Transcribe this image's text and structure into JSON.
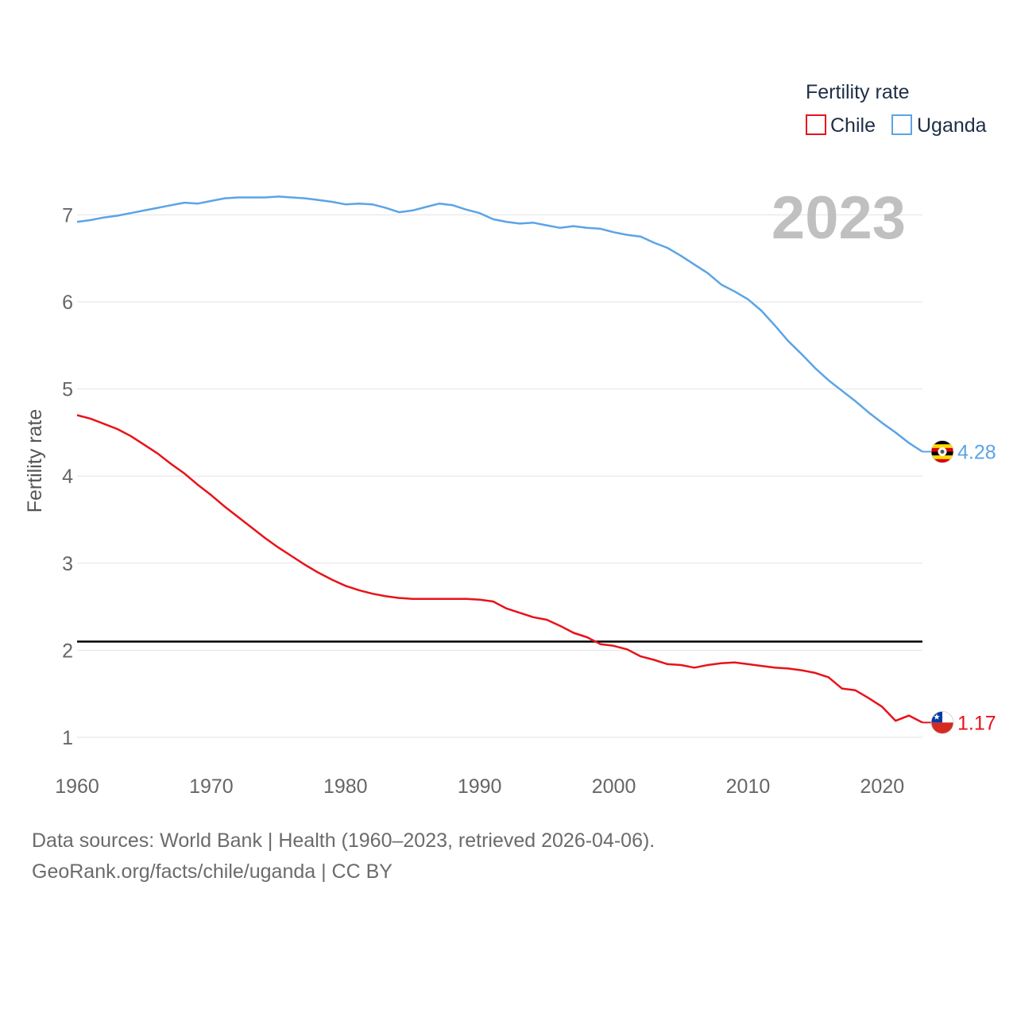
{
  "chart_data": {
    "type": "line",
    "ylabel": "Fertility rate",
    "x_ticks": [
      1960,
      1970,
      1980,
      1990,
      2000,
      2010,
      2020
    ],
    "y_ticks": [
      1,
      2,
      3,
      4,
      5,
      6,
      7
    ],
    "xlim": [
      1960,
      2023
    ],
    "ylim": [
      0.7,
      7.5
    ],
    "year_label": "2023",
    "reference_line": 2.1,
    "legend": {
      "title": "Fertility rate",
      "position": "top-right"
    },
    "x": [
      1960,
      1961,
      1962,
      1963,
      1964,
      1965,
      1966,
      1967,
      1968,
      1969,
      1970,
      1971,
      1972,
      1973,
      1974,
      1975,
      1976,
      1977,
      1978,
      1979,
      1980,
      1981,
      1982,
      1983,
      1984,
      1985,
      1986,
      1987,
      1988,
      1989,
      1990,
      1991,
      1992,
      1993,
      1994,
      1995,
      1996,
      1997,
      1998,
      1999,
      2000,
      2001,
      2002,
      2003,
      2004,
      2005,
      2006,
      2007,
      2008,
      2009,
      2010,
      2011,
      2012,
      2013,
      2014,
      2015,
      2016,
      2017,
      2018,
      2019,
      2020,
      2021,
      2022,
      2023
    ],
    "series": [
      {
        "name": "Chile",
        "color": "#e8121a",
        "end_label": "1.17",
        "flag": "chile-flag",
        "values": [
          4.7,
          4.66,
          4.6,
          4.54,
          4.46,
          4.36,
          4.26,
          4.14,
          4.03,
          3.9,
          3.78,
          3.65,
          3.53,
          3.41,
          3.29,
          3.18,
          3.08,
          2.98,
          2.89,
          2.81,
          2.74,
          2.69,
          2.65,
          2.62,
          2.6,
          2.59,
          2.59,
          2.59,
          2.59,
          2.59,
          2.58,
          2.56,
          2.48,
          2.43,
          2.38,
          2.35,
          2.28,
          2.2,
          2.15,
          2.07,
          2.05,
          2.01,
          1.93,
          1.89,
          1.84,
          1.83,
          1.8,
          1.83,
          1.85,
          1.86,
          1.84,
          1.82,
          1.8,
          1.79,
          1.77,
          1.74,
          1.69,
          1.56,
          1.54,
          1.45,
          1.35,
          1.19,
          1.25,
          1.17
        ]
      },
      {
        "name": "Uganda",
        "color": "#5ba4e6",
        "end_label": "4.28",
        "flag": "uganda-flag",
        "values": [
          6.92,
          6.94,
          6.97,
          6.99,
          7.02,
          7.05,
          7.08,
          7.11,
          7.14,
          7.13,
          7.16,
          7.19,
          7.2,
          7.2,
          7.2,
          7.21,
          7.2,
          7.19,
          7.17,
          7.15,
          7.12,
          7.13,
          7.12,
          7.08,
          7.03,
          7.05,
          7.09,
          7.13,
          7.11,
          7.06,
          7.02,
          6.95,
          6.92,
          6.9,
          6.91,
          6.88,
          6.85,
          6.87,
          6.85,
          6.84,
          6.8,
          6.77,
          6.75,
          6.68,
          6.62,
          6.53,
          6.43,
          6.33,
          6.2,
          6.12,
          6.03,
          5.9,
          5.73,
          5.55,
          5.4,
          5.24,
          5.1,
          4.98,
          4.86,
          4.73,
          4.61,
          4.5,
          4.38,
          4.28
        ]
      }
    ]
  },
  "footer": {
    "line1": "Data sources: World Bank | Health (1960–2023, retrieved 2026-04-06).",
    "line2": "GeoRank.org/facts/chile/uganda | CC BY"
  }
}
